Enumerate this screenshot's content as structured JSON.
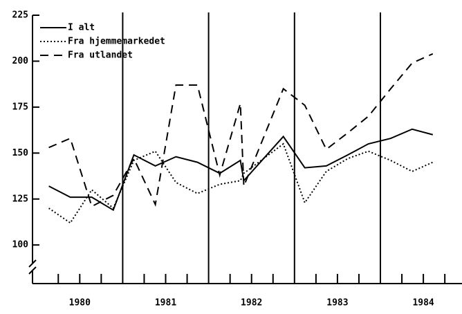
{
  "chart_data": {
    "type": "line",
    "x": [
      1980.14,
      1980.39,
      1980.64,
      1980.89,
      1981.13,
      1981.38,
      1981.62,
      1981.87,
      1982.13,
      1982.37,
      1982.41,
      1982.87,
      1983.12,
      1983.37,
      1983.62,
      1983.86,
      1984.12,
      1984.37,
      1984.61
    ],
    "series": [
      {
        "name": "I alt",
        "color": "#000000",
        "dash": "solid",
        "values": [
          132,
          126,
          126,
          119,
          149,
          143,
          148,
          145,
          139,
          146,
          135,
          159,
          142,
          143,
          149,
          155,
          158,
          163,
          160
        ]
      },
      {
        "name": "Fra hjemmemarkedet",
        "color": "#000000",
        "dash": "dotted",
        "values": [
          120,
          112,
          130,
          120,
          146,
          151,
          134,
          128,
          133,
          135,
          139,
          155,
          123,
          140,
          147,
          151,
          146,
          140,
          145
        ]
      },
      {
        "name": "Fra utlandet",
        "color": "#000000",
        "dash": "dashed",
        "values": [
          153,
          158,
          121,
          127,
          147,
          122,
          187,
          187,
          138,
          177,
          132,
          185,
          176,
          152,
          161,
          170,
          185,
          199,
          204
        ]
      }
    ],
    "xlim": [
      1979.95,
      1984.95
    ],
    "xticks": [
      {
        "value": 1980.5,
        "label": "1980"
      },
      {
        "value": 1981.5,
        "label": "1981"
      },
      {
        "value": 1982.5,
        "label": "1982"
      },
      {
        "value": 1983.5,
        "label": "1983"
      },
      {
        "value": 1984.5,
        "label": "1984"
      }
    ],
    "minor_xticks": [
      1980.25,
      1980.5,
      1980.75,
      1981.25,
      1981.5,
      1981.75,
      1982.25,
      1982.5,
      1982.75,
      1983.25,
      1983.5,
      1983.75,
      1984.25,
      1984.5,
      1984.75
    ],
    "year_lines": [
      1981,
      1982,
      1983,
      1984
    ],
    "ylim": [
      79,
      225
    ],
    "yticks": [
      100,
      125,
      150,
      175,
      200,
      225
    ],
    "legend": "upper left"
  }
}
